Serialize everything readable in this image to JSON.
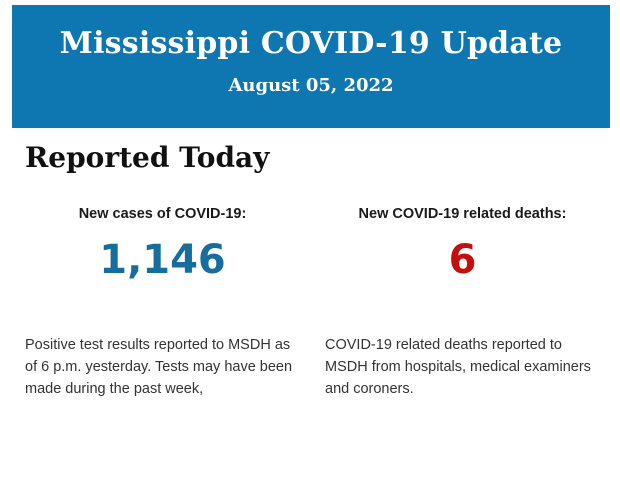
{
  "banner": {
    "title": "Mississippi COVID-19 Update",
    "date": "August 05, 2022",
    "background_color": "#0e76b0",
    "text_color": "#ffffff"
  },
  "section": {
    "heading": "Reported Today"
  },
  "stats": {
    "cases": {
      "label": "New cases of COVID-19:",
      "value": "1,146",
      "value_color": "#176e9e",
      "description": "Positive test results reported to MSDH as of 6 p.m. yesterday. Tests may have been made during the past week,"
    },
    "deaths": {
      "label": "New COVID-19 related deaths:",
      "value": "6",
      "value_color": "#c2100f",
      "description": "COVID-19 related deaths reported to MSDH from hospitals, medical examiners and coroners."
    }
  }
}
